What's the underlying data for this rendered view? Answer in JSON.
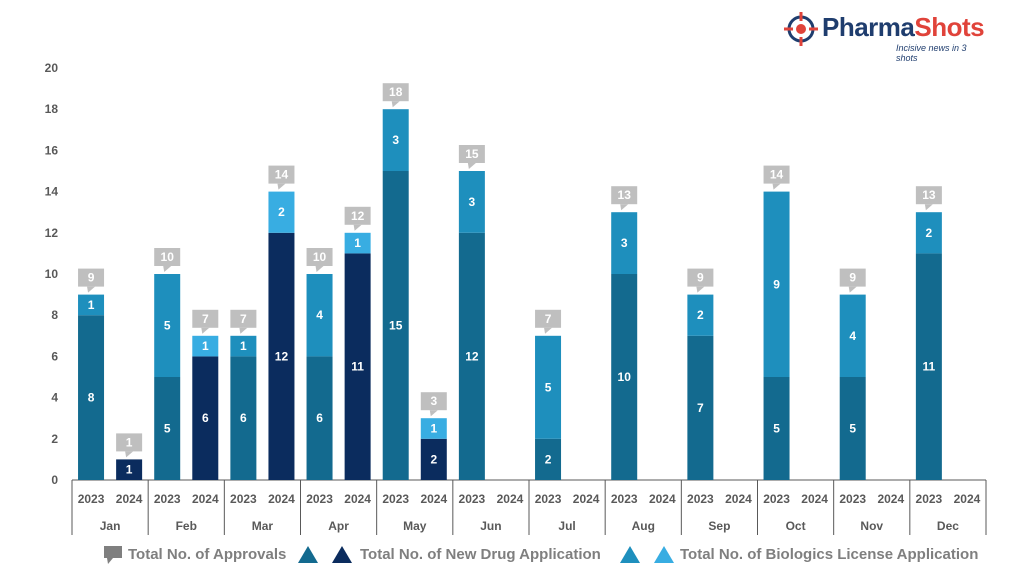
{
  "logo": {
    "brand_part1": "Pharma",
    "brand_part2": "Shots",
    "tagline": "Incisive news in 3 shots",
    "icon": "crosshair-icon"
  },
  "legend": {
    "total": "Total No. of Approvals",
    "nda": "Total No. of New Drug Application",
    "bla": "Total No. of Biologics License Application"
  },
  "colors": {
    "nda_2023": "#136a8f",
    "nda_2024": "#0b2c5e",
    "bla_2023": "#1e8fbd",
    "bla_2024": "#38ade2",
    "callout": "#bfbfbf",
    "axis_text": "#595959"
  },
  "chart_data": {
    "type": "bar",
    "stacked": true,
    "ylim": [
      0,
      20
    ],
    "yticks": [
      0,
      2,
      4,
      6,
      8,
      10,
      12,
      14,
      16,
      18,
      20
    ],
    "months": [
      "Jan",
      "Feb",
      "Mar",
      "Apr",
      "May",
      "Jun",
      "Jul",
      "Aug",
      "Sep",
      "Oct",
      "Nov",
      "Dec"
    ],
    "years": [
      "2023",
      "2024"
    ],
    "series": [
      {
        "name": "Total No. of New Drug Application",
        "values_2023": [
          8,
          5,
          6,
          6,
          15,
          12,
          2,
          10,
          7,
          5,
          5,
          11
        ],
        "values_2024": [
          1,
          6,
          12,
          11,
          2,
          null,
          null,
          null,
          null,
          null,
          null,
          null
        ]
      },
      {
        "name": "Total No. of Biologics License Application",
        "values_2023": [
          1,
          5,
          1,
          4,
          3,
          3,
          5,
          3,
          2,
          9,
          4,
          2
        ],
        "values_2024": [
          0,
          1,
          2,
          1,
          1,
          null,
          null,
          null,
          null,
          null,
          null,
          null
        ]
      }
    ],
    "totals_2023": [
      9,
      10,
      7,
      10,
      18,
      15,
      7,
      13,
      9,
      14,
      9,
      13
    ],
    "totals_2024": [
      1,
      7,
      14,
      12,
      3,
      null,
      null,
      null,
      null,
      null,
      null,
      null
    ]
  }
}
